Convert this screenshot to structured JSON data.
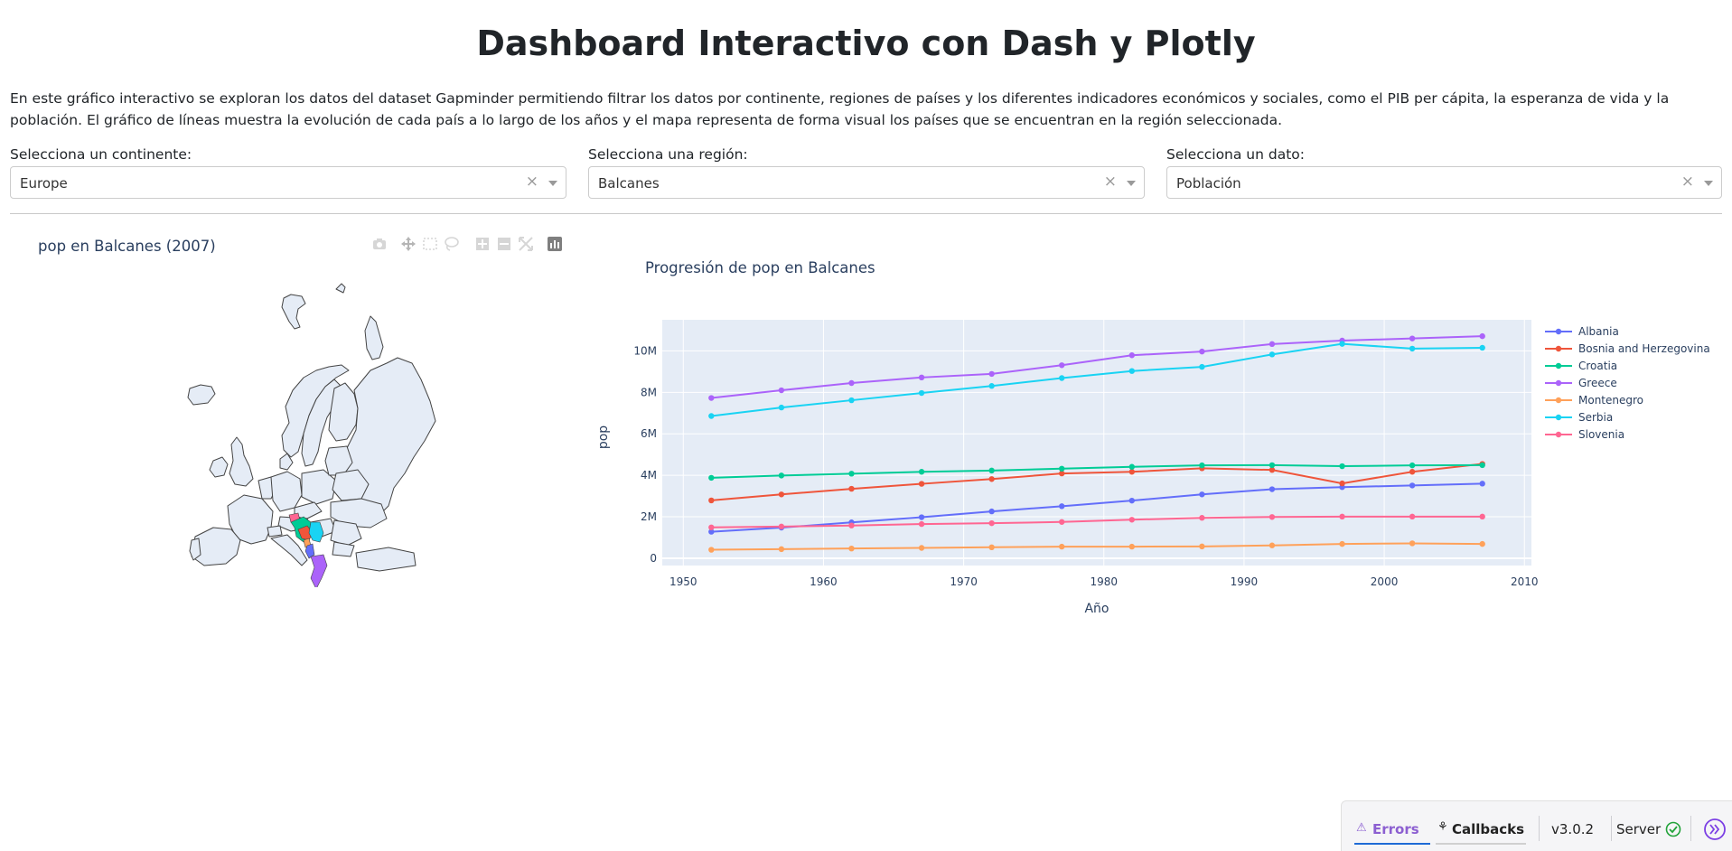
{
  "header": {
    "title": "Dashboard Interactivo con Dash y Plotly",
    "intro": "En este gráfico interactivo se exploran los datos del dataset Gapminder permitiendo filtrar los datos por continente, regiones de países y los diferentes indicadores económicos y sociales, como el PIB per cápita, la esperanza de vida y la población. El gráfico de líneas muestra la evolución de cada país a lo largo de los años y el mapa representa de forma visual los países que se encuentran en la región seleccionada."
  },
  "filters": [
    {
      "label": "Selecciona un continente:",
      "value": "Europe"
    },
    {
      "label": "Selecciona una región:",
      "value": "Balcanes"
    },
    {
      "label": "Selecciona un dato:",
      "value": "Población"
    }
  ],
  "map": {
    "title": "pop en Balcanes (2007)",
    "modebar_icons": [
      "camera-icon",
      "pan-icon",
      "box-select-icon",
      "lasso-icon",
      "zoom-in-icon",
      "zoom-out-icon",
      "reset-icon",
      "plotly-logo-icon"
    ]
  },
  "chart_data": {
    "type": "line",
    "title": "Progresión de pop en Balcanes",
    "xlabel": "Año",
    "ylabel": "pop",
    "xlim": [
      1948.5,
      2010.5
    ],
    "ylim": [
      -350000,
      11500000
    ],
    "x_ticks": [
      1950,
      1960,
      1970,
      1980,
      1990,
      2000,
      2010
    ],
    "y_ticks": [
      {
        "v": 0,
        "label": "0"
      },
      {
        "v": 2000000,
        "label": "2M"
      },
      {
        "v": 4000000,
        "label": "4M"
      },
      {
        "v": 6000000,
        "label": "6M"
      },
      {
        "v": 8000000,
        "label": "8M"
      },
      {
        "v": 10000000,
        "label": "10M"
      }
    ],
    "legend_position": "right",
    "grid": true,
    "x": [
      1952,
      1957,
      1962,
      1967,
      1972,
      1977,
      1982,
      1987,
      1992,
      1997,
      2002,
      2007
    ],
    "series": [
      {
        "name": "Albania",
        "color": "#636efa",
        "values": [
          1280000,
          1480000,
          1730000,
          1980000,
          2260000,
          2510000,
          2780000,
          3080000,
          3330000,
          3430000,
          3510000,
          3600000
        ]
      },
      {
        "name": "Bosnia and Herzegovina",
        "color": "#ef553b",
        "values": [
          2790000,
          3080000,
          3350000,
          3590000,
          3820000,
          4090000,
          4170000,
          4340000,
          4260000,
          3610000,
          4170000,
          4550000
        ]
      },
      {
        "name": "Croatia",
        "color": "#00cc96",
        "values": [
          3880000,
          3990000,
          4080000,
          4170000,
          4230000,
          4320000,
          4410000,
          4480000,
          4490000,
          4440000,
          4480000,
          4490000
        ]
      },
      {
        "name": "Greece",
        "color": "#ab63fa",
        "values": [
          7730000,
          8100000,
          8450000,
          8720000,
          8890000,
          9310000,
          9790000,
          9970000,
          10330000,
          10500000,
          10600000,
          10710000
        ]
      },
      {
        "name": "Montenegro",
        "color": "#ffa15a",
        "values": [
          410000,
          440000,
          470000,
          500000,
          530000,
          560000,
          560000,
          570000,
          620000,
          690000,
          720000,
          690000
        ]
      },
      {
        "name": "Serbia",
        "color": "#19d3f3",
        "values": [
          6860000,
          7270000,
          7620000,
          7970000,
          8310000,
          8690000,
          9030000,
          9230000,
          9830000,
          10340000,
          10110000,
          10150000
        ]
      },
      {
        "name": "Slovenia",
        "color": "#ff6692",
        "values": [
          1490000,
          1530000,
          1580000,
          1650000,
          1690000,
          1750000,
          1860000,
          1950000,
          1990000,
          2010000,
          2010000,
          2010000
        ]
      }
    ]
  },
  "devtools": {
    "errors_label": "Errors",
    "callbacks_label": "Callbacks",
    "version": "v3.0.2",
    "server_label": "Server"
  }
}
